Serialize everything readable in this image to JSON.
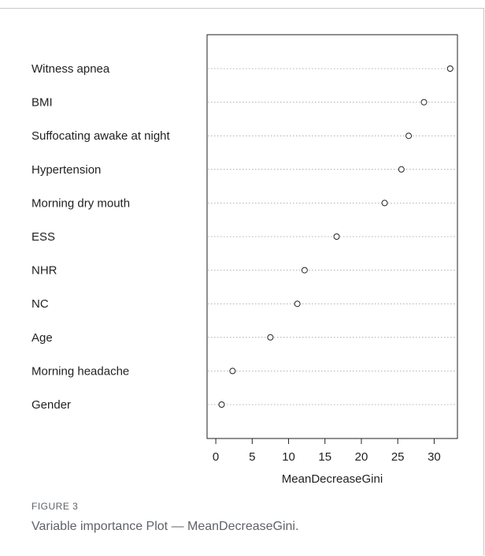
{
  "figure": {
    "label": "FIGURE 3",
    "caption": "Variable importance Plot — MeanDecreaseGini."
  },
  "chart_data": {
    "type": "scatter",
    "title": "",
    "xlabel": "MeanDecreaseGini",
    "ylabel": "",
    "categories": [
      "Witness apnea",
      "BMI",
      "Suffocating awake at night",
      "Hypertension",
      "Morning dry mouth",
      "ESS",
      "NHR",
      "NC",
      "Age",
      "Morning headache",
      "Gender"
    ],
    "values": [
      32.2,
      28.6,
      26.5,
      25.5,
      23.2,
      16.6,
      12.2,
      11.2,
      7.5,
      2.3,
      0.8
    ],
    "xlim": [
      -1.2,
      33.2
    ],
    "xticks": [
      0,
      5,
      10,
      15,
      20,
      25,
      30
    ],
    "grid": "dotted horizontal guide lines",
    "marker": "open circle"
  }
}
